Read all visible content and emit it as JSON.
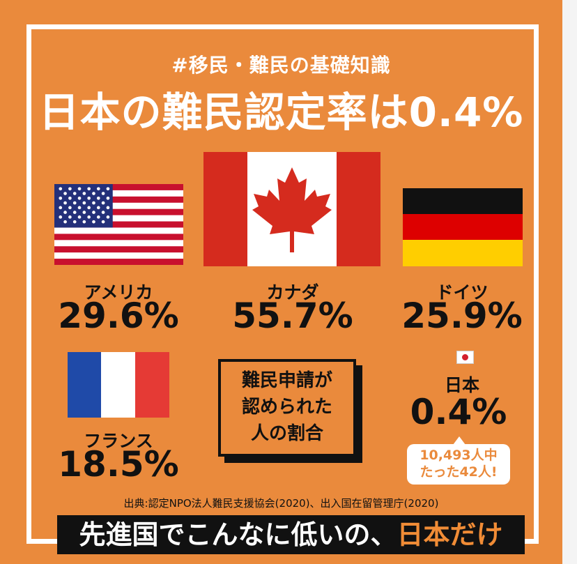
{
  "hashtag": "#移民・難民の基礎知識",
  "headline": "日本の難民認定率は0.4%",
  "countries": [
    {
      "name": "アメリカ",
      "rate": "29.6%"
    },
    {
      "name": "カナダ",
      "rate": "55.7%"
    },
    {
      "name": "ドイツ",
      "rate": "25.9%"
    },
    {
      "name": "フランス",
      "rate": "18.5%"
    },
    {
      "name": "日本",
      "rate": "0.4%"
    }
  ],
  "box_label": "難民申請が\n認められた\n人の割合",
  "japan_note": "10,493人中\nたった42人!",
  "source": "出典:認定NPO法人難民支援協会(2020)、出入国在留管理庁(2020)",
  "banner": {
    "text": "先進国でこんなに低いの、",
    "highlight": "日本だけ"
  },
  "colors": {
    "background": "#ea8a3c",
    "highlight": "#f08c36",
    "text": "#111111"
  }
}
